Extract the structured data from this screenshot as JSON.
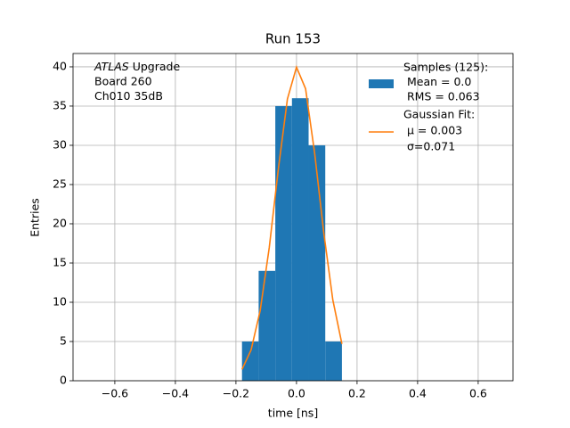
{
  "chart_data": {
    "type": "histogram",
    "title": "Run 153",
    "xlabel": "time [ns]",
    "ylabel": "Entries",
    "annotation_italic": "ATLAS",
    "annotation": [
      "Upgrade",
      "Board 260",
      "Ch010 35dB"
    ],
    "bins": [
      -0.18,
      -0.125,
      -0.07,
      -0.015,
      0.04,
      0.095,
      0.15
    ],
    "counts": [
      5,
      14,
      35,
      36,
      30,
      5
    ],
    "hist_name": [
      "Samples (125):",
      " Mean = 0.0",
      " RMS = 0.063"
    ],
    "hist_color": "#1f77b4",
    "fit": {
      "name": [
        "Gaussian Fit:",
        " μ = 0.003",
        " σ=0.071"
      ],
      "color": "#ff7f0e",
      "x": [
        -0.18,
        -0.15,
        -0.12,
        -0.09,
        -0.06,
        -0.03,
        0,
        0.03,
        0.06,
        0.09,
        0.12,
        0.15
      ],
      "values": [
        1.44,
        3.92,
        8.92,
        16.96,
        26.98,
        35.9,
        39.96,
        37.21,
        28.98,
        18.88,
        10.29,
        4.69
      ]
    },
    "xlim": [
      -0.738,
      0.715
    ],
    "ylim": [
      0,
      41.7
    ],
    "xticks": [
      {
        "value": -0.6,
        "label": "−0.6"
      },
      {
        "value": -0.4,
        "label": "−0.4"
      },
      {
        "value": -0.2,
        "label": "−0.2"
      },
      {
        "value": 0,
        "label": "0.0"
      },
      0.2,
      0.4,
      0.6
    ],
    "yticks": [
      0,
      5,
      10,
      15,
      20,
      25,
      30,
      35,
      40
    ],
    "grid": true,
    "legend": "upper right"
  }
}
